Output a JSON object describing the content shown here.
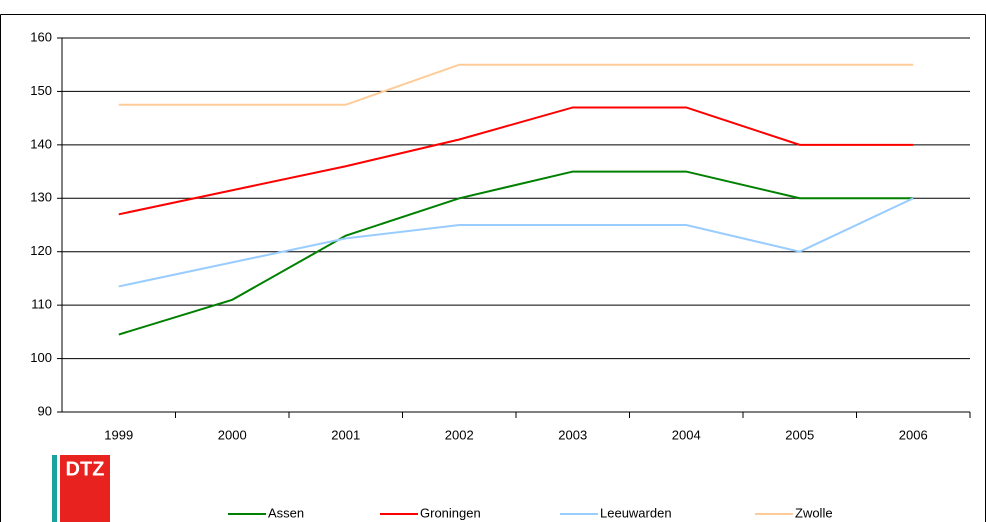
{
  "chart_data": {
    "type": "line",
    "categories": [
      "1999",
      "2000",
      "2001",
      "2002",
      "2003",
      "2004",
      "2005",
      "2006"
    ],
    "series": [
      {
        "name": "Assen",
        "color": "#008000",
        "values": [
          104.5,
          111,
          123,
          130,
          135,
          135,
          130,
          130
        ]
      },
      {
        "name": "Groningen",
        "color": "#ff0000",
        "values": [
          127,
          131.5,
          136,
          141,
          147,
          147,
          140,
          140
        ]
      },
      {
        "name": "Leeuwarden",
        "color": "#99ccff",
        "values": [
          113.5,
          118,
          122.5,
          125,
          125,
          125,
          120,
          130
        ]
      },
      {
        "name": "Zwolle",
        "color": "#ffcc99",
        "values": [
          147.5,
          147.5,
          147.5,
          155,
          155,
          155,
          155,
          155
        ]
      }
    ],
    "ylim": [
      90,
      160
    ],
    "yticks": [
      90,
      100,
      110,
      120,
      130,
      140,
      150,
      160
    ],
    "grid": true,
    "legend": "bottom"
  },
  "logo": {
    "text": "DTZ"
  }
}
